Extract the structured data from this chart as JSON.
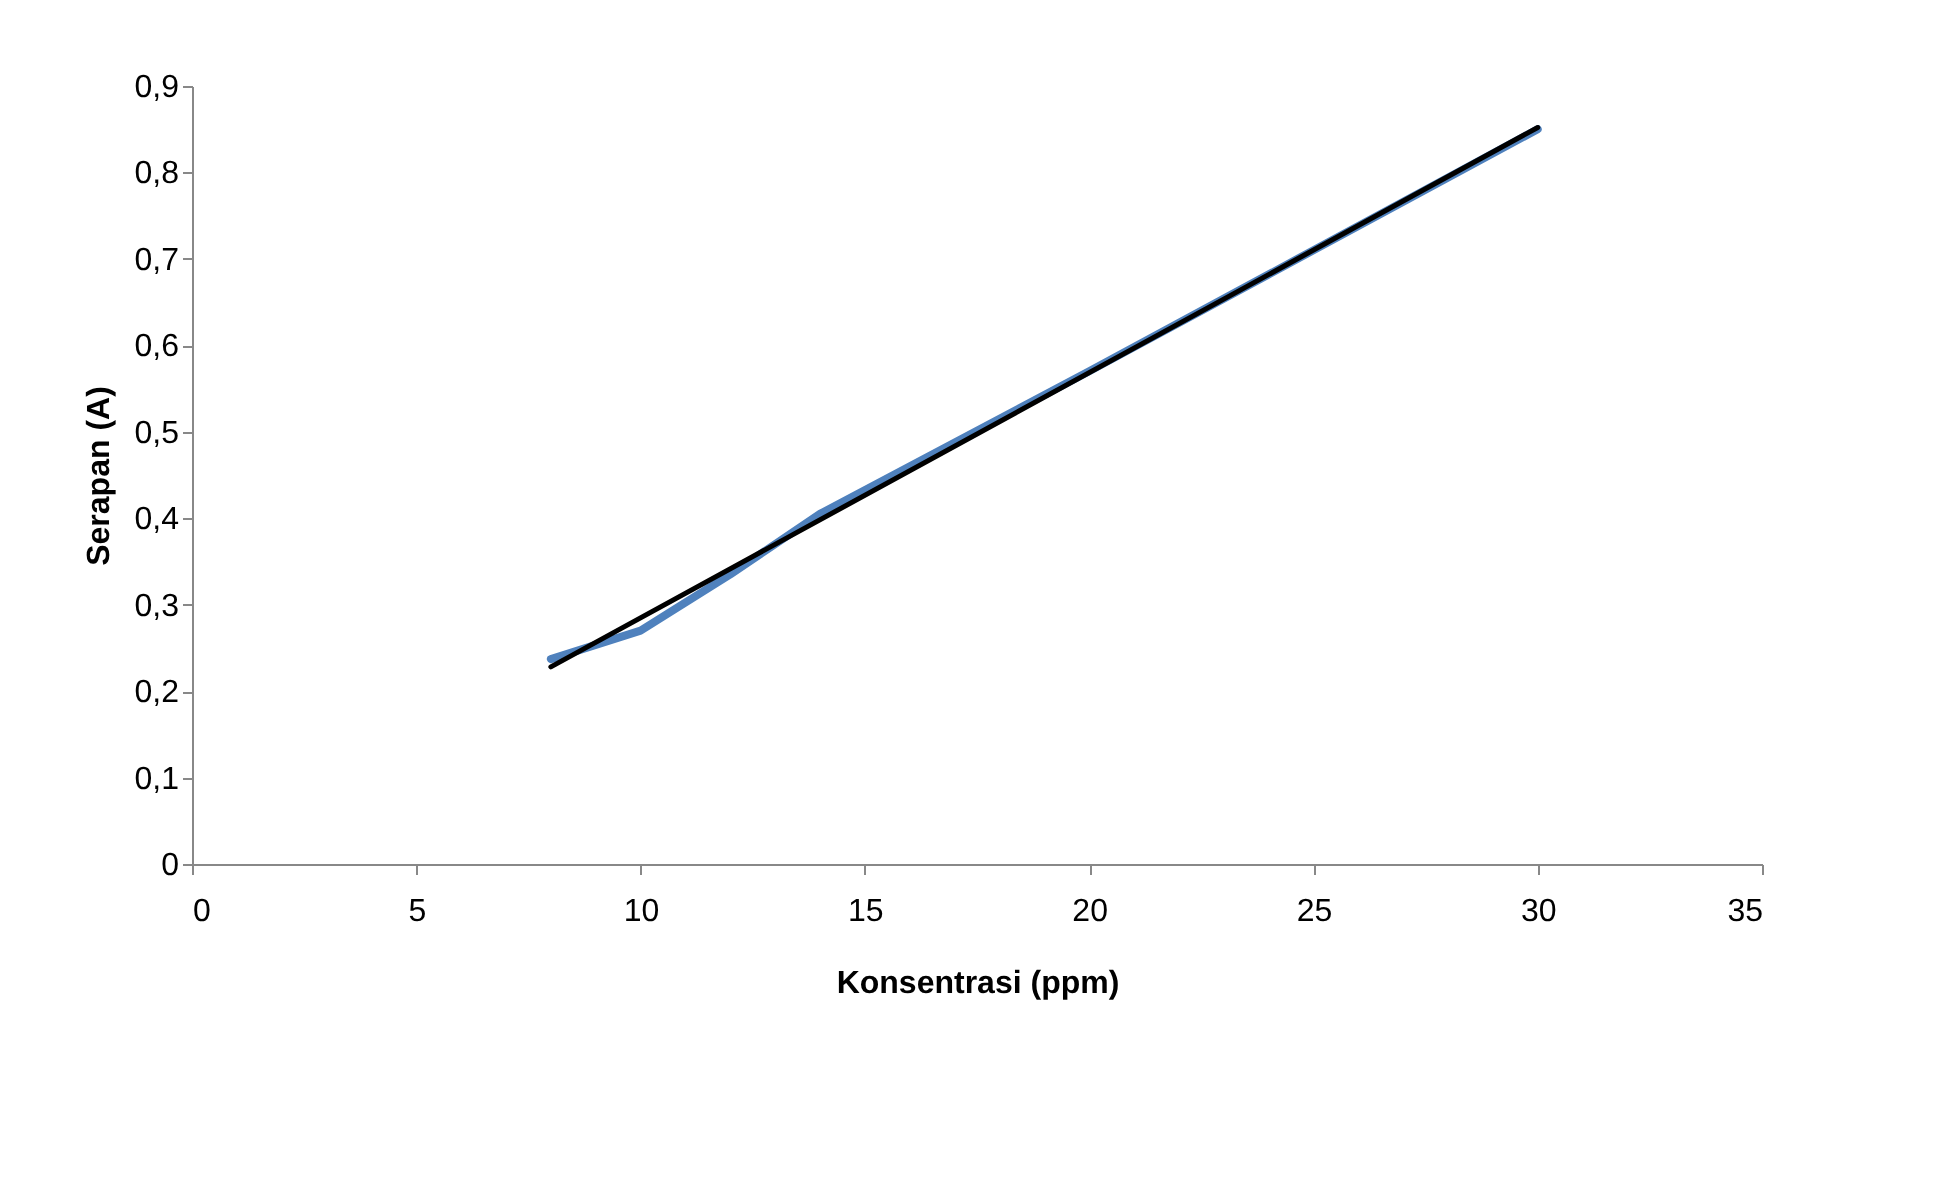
{
  "chart_data": {
    "type": "line",
    "xlabel": "Konsentrasi (ppm)",
    "ylabel": "Serapan (A)",
    "xlim": [
      0,
      35
    ],
    "xticks": [
      0,
      5,
      10,
      15,
      20,
      25,
      30,
      35
    ],
    "ylim": [
      0,
      0.9
    ],
    "yticks": [
      0,
      {
        "value": 0.1,
        "label": "0,1"
      },
      {
        "value": 0.2,
        "label": "0,2"
      },
      {
        "value": 0.3,
        "label": "0,3"
      },
      {
        "value": 0.4,
        "label": "0,4"
      },
      {
        "value": 0.5,
        "label": "0,5"
      },
      {
        "value": 0.6,
        "label": "0,6"
      },
      {
        "value": 0.7,
        "label": "0,7"
      },
      {
        "value": 0.8,
        "label": "0,8"
      },
      {
        "value": 0.9,
        "label": "0,9"
      }
    ],
    "grid": false,
    "marker": "none",
    "line_style": "solid",
    "series": [
      {
        "color": "#4f81bd",
        "x": [
          8,
          10,
          12,
          14,
          20,
          25,
          30
        ],
        "values": [
          0.237,
          0.27,
          0.335,
          0.405,
          0.57,
          0.71,
          0.85
        ]
      },
      {
        "type": "line",
        "color": "#000000",
        "x": [
          8,
          30
        ],
        "values": [
          0.228,
          0.852
        ]
      }
    ]
  }
}
